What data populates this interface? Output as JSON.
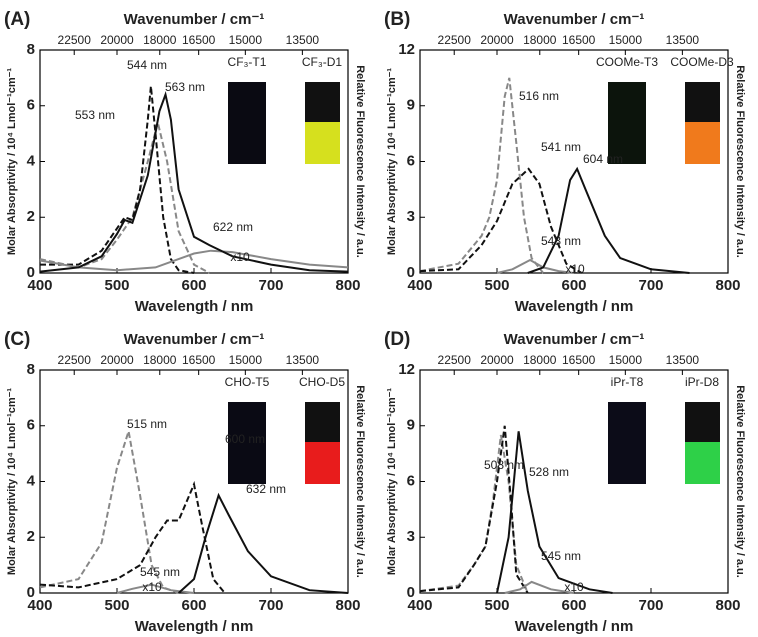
{
  "chart_data": [
    {
      "type": "line",
      "panel": "(A)",
      "xlabel": "Wavelength / nm",
      "ylabel": "Molar Absorptivity / 10⁴ Lmol⁻¹cm⁻¹",
      "y2label": "Relative Fluorescence Intensity / a.u.",
      "x2label": "Wavenumber / cm⁻¹",
      "xlim": [
        400,
        800
      ],
      "xticks": [
        400,
        500,
        600,
        700,
        800
      ],
      "ylim": [
        0,
        8
      ],
      "yticks": [
        0,
        2,
        4,
        6,
        8
      ],
      "x2ticks": [
        22500,
        20000,
        18000,
        16500,
        15000,
        13500
      ],
      "samples": [
        "CF₃-T1",
        "CF₃-D1"
      ],
      "annotations": [
        "544 nm",
        "563 nm",
        "553 nm",
        "622 nm",
        "x10"
      ],
      "series": [
        {
          "color": "#888888",
          "style": "dashed",
          "x": [
            400,
            450,
            480,
            500,
            520,
            540,
            553,
            565,
            580,
            600,
            620
          ],
          "values": [
            0.5,
            0.2,
            0.5,
            1.2,
            2.0,
            4.0,
            5.4,
            4.0,
            1.5,
            0.3,
            0
          ]
        },
        {
          "color": "#111111",
          "style": "dashed",
          "x": [
            400,
            450,
            480,
            500,
            510,
            520,
            530,
            540,
            544,
            550,
            560,
            570,
            580,
            600
          ],
          "values": [
            0.3,
            0.3,
            0.8,
            1.6,
            2.0,
            1.9,
            3.0,
            5.5,
            6.7,
            5.0,
            2.0,
            0.5,
            0.1,
            0
          ]
        },
        {
          "color": "#888888",
          "style": "solid",
          "x": [
            400,
            450,
            500,
            550,
            580,
            600,
            622,
            650,
            700,
            750,
            800
          ],
          "values": [
            0.45,
            0.2,
            0.1,
            0.2,
            0.5,
            0.7,
            0.8,
            0.75,
            0.5,
            0.3,
            0.2
          ]
        },
        {
          "color": "#111111",
          "style": "solid",
          "x": [
            400,
            450,
            480,
            500,
            510,
            520,
            540,
            555,
            563,
            570,
            580,
            600,
            620,
            650,
            700,
            750,
            800
          ],
          "values": [
            0.05,
            0.2,
            0.6,
            1.4,
            1.9,
            1.8,
            3.5,
            5.8,
            6.4,
            5.5,
            3.0,
            1.3,
            1.0,
            0.6,
            0.3,
            0.1,
            0.05
          ]
        }
      ]
    },
    {
      "type": "line",
      "panel": "(B)",
      "xlabel": "Wavelength / nm",
      "ylabel": "Molar Absorptivity / 10⁴ Lmol⁻¹cm⁻¹",
      "y2label": "Relative Fluorescence Intensity / a.u.",
      "x2label": "Wavenumber / cm⁻¹",
      "xlim": [
        400,
        800
      ],
      "xticks": [
        400,
        500,
        600,
        700,
        800
      ],
      "ylim": [
        0,
        12
      ],
      "yticks": [
        0,
        3,
        6,
        9,
        12
      ],
      "x2ticks": [
        22500,
        20000,
        18000,
        16500,
        15000,
        13500
      ],
      "samples": [
        "COOMe-T3",
        "COOMe-D3"
      ],
      "annotations": [
        "516 nm",
        "541 nm",
        "604 nm",
        "543 nm",
        "x10"
      ],
      "series": [
        {
          "color": "#888888",
          "style": "dashed",
          "x": [
            400,
            450,
            480,
            490,
            500,
            510,
            516,
            525,
            535,
            545,
            560
          ],
          "values": [
            0.1,
            0.5,
            2.0,
            3.0,
            5.0,
            9.5,
            10.5,
            7.0,
            3.0,
            0.8,
            0
          ]
        },
        {
          "color": "#111111",
          "style": "dashed",
          "x": [
            400,
            450,
            480,
            500,
            520,
            541,
            555,
            570,
            590,
            610
          ],
          "values": [
            0.1,
            0.2,
            1.5,
            2.8,
            4.8,
            5.6,
            4.8,
            2.5,
            0.5,
            0
          ]
        },
        {
          "color": "#888888",
          "style": "solid",
          "x": [
            500,
            520,
            543,
            560,
            580,
            600
          ],
          "values": [
            0,
            0.2,
            0.7,
            0.3,
            0.1,
            0
          ]
        },
        {
          "color": "#111111",
          "style": "solid",
          "x": [
            540,
            560,
            580,
            595,
            604,
            615,
            640,
            660,
            700,
            750
          ],
          "values": [
            0,
            0.3,
            2.0,
            5.0,
            5.6,
            4.5,
            2.0,
            0.8,
            0.2,
            0
          ]
        }
      ]
    },
    {
      "type": "line",
      "panel": "(C)",
      "xlabel": "Wavelength / nm",
      "ylabel": "Molar Absorptivity / 10⁴ Lmol⁻¹cm⁻¹",
      "y2label": "Relative Fluorescence Intensity / a.u.",
      "x2label": "Wavenumber / cm⁻¹",
      "xlim": [
        400,
        800
      ],
      "xticks": [
        400,
        500,
        600,
        700,
        800
      ],
      "ylim": [
        0,
        8
      ],
      "yticks": [
        0,
        2,
        4,
        6,
        8
      ],
      "x2ticks": [
        22500,
        20000,
        18000,
        16500,
        15000,
        13500
      ],
      "samples": [
        "CHO-T5",
        "CHO-D5"
      ],
      "annotations": [
        "515 nm",
        "600 nm",
        "632 nm",
        "545 nm",
        "x10"
      ],
      "series": [
        {
          "color": "#888888",
          "style": "dashed",
          "x": [
            400,
            450,
            480,
            500,
            515,
            530,
            545,
            560,
            580
          ],
          "values": [
            0.2,
            0.5,
            1.8,
            4.5,
            5.8,
            3.5,
            1.0,
            0.2,
            0
          ]
        },
        {
          "color": "#111111",
          "style": "dashed",
          "x": [
            400,
            450,
            500,
            530,
            550,
            565,
            580,
            600,
            610,
            625,
            640
          ],
          "values": [
            0.3,
            0.2,
            0.5,
            1.0,
            2.0,
            2.6,
            2.6,
            3.9,
            2.5,
            0.5,
            0
          ]
        },
        {
          "color": "#888888",
          "style": "solid",
          "x": [
            500,
            520,
            545,
            570,
            600
          ],
          "values": [
            0,
            0.15,
            0.3,
            0.1,
            0
          ]
        },
        {
          "color": "#111111",
          "style": "solid",
          "x": [
            580,
            600,
            615,
            632,
            645,
            670,
            700,
            750,
            800
          ],
          "values": [
            0,
            0.5,
            2.0,
            3.5,
            2.8,
            1.5,
            0.6,
            0.1,
            0
          ]
        }
      ]
    },
    {
      "type": "line",
      "panel": "(D)",
      "xlabel": "Wavelength / nm",
      "ylabel": "Molar Absorptivity / 10⁴ Lmol⁻¹cm⁻¹",
      "y2label": "Relative Fluorescence Intensity / a.u.",
      "x2label": "Wavenumber / cm⁻¹",
      "xlim": [
        400,
        800
      ],
      "xticks": [
        400,
        500,
        600,
        700,
        800
      ],
      "ylim": [
        0,
        12
      ],
      "yticks": [
        0,
        3,
        6,
        9,
        12
      ],
      "x2ticks": [
        22500,
        20000,
        18000,
        16500,
        15000,
        13500
      ],
      "samples": [
        "iPr-T8",
        "iPr-D8"
      ],
      "annotations": [
        "508 nm",
        "528 nm",
        "545 nm",
        "x10"
      ],
      "series": [
        {
          "color": "#888888",
          "style": "dashed",
          "x": [
            400,
            450,
            470,
            485,
            495,
            505,
            515,
            525,
            540
          ],
          "values": [
            0.1,
            0.4,
            1.5,
            2.5,
            5.0,
            8.5,
            6.0,
            1.5,
            0
          ]
        },
        {
          "color": "#111111",
          "style": "dashed",
          "x": [
            400,
            450,
            470,
            485,
            500,
            510,
            518,
            525,
            540
          ],
          "values": [
            0.1,
            0.3,
            1.5,
            2.5,
            6.0,
            9.0,
            5.0,
            1.0,
            0
          ]
        },
        {
          "color": "#888888",
          "style": "solid",
          "x": [
            510,
            530,
            545,
            570,
            600
          ],
          "values": [
            0,
            0.2,
            0.6,
            0.2,
            0
          ]
        },
        {
          "color": "#111111",
          "style": "solid",
          "x": [
            500,
            515,
            528,
            540,
            555,
            580,
            620,
            650
          ],
          "values": [
            0,
            3.0,
            8.7,
            5.5,
            2.5,
            0.8,
            0.2,
            0
          ]
        }
      ]
    }
  ]
}
